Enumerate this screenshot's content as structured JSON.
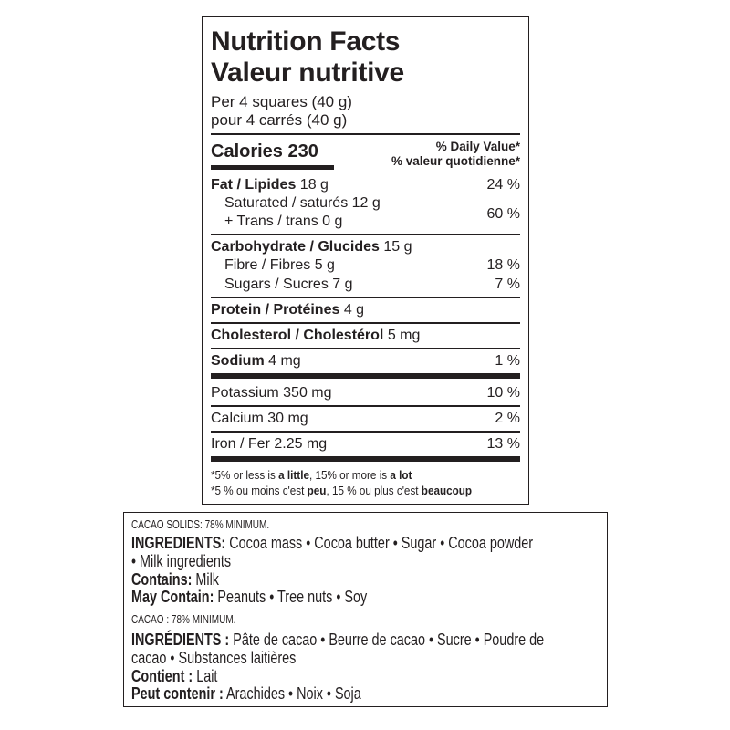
{
  "nutrition": {
    "title_en": "Nutrition Facts",
    "title_fr": "Valeur nutritive",
    "serving_en": "Per 4 squares (40 g)",
    "serving_fr": "pour 4 carrés (40 g)",
    "calories_label": "Calories",
    "calories_value": "230",
    "dv_header_en": "% Daily Value*",
    "dv_header_fr": "% valeur quotidienne*",
    "fat": {
      "label": "Fat / Lipides",
      "amount": "18 g",
      "dv": "24 %"
    },
    "saturated": {
      "label": "Saturated / saturés 12 g"
    },
    "trans": {
      "label": "+ Trans / trans 0 g",
      "dv": "60 %"
    },
    "carb": {
      "label": "Carbohydrate / Glucides",
      "amount": "15 g"
    },
    "fibre": {
      "label": "Fibre / Fibres 5 g",
      "dv": "18 %"
    },
    "sugars": {
      "label": "Sugars / Sucres 7 g",
      "dv": "7 %"
    },
    "protein": {
      "label": "Protein / Protéines",
      "amount": "4 g"
    },
    "cholesterol": {
      "label": "Cholesterol / Cholestérol",
      "amount": "5 mg"
    },
    "sodium": {
      "label": "Sodium",
      "amount": "4 mg",
      "dv": "1 %"
    },
    "potassium": {
      "label": "Potassium 350 mg",
      "dv": "10 %"
    },
    "calcium": {
      "label": "Calcium 30 mg",
      "dv": "2 %"
    },
    "iron": {
      "label": "Iron / Fer 2.25 mg",
      "dv": "13 %"
    },
    "footnote_en": {
      "a": "*5% or less is ",
      "b": "a little",
      "c": ", 15% or more is ",
      "d": "a lot"
    },
    "footnote_fr": {
      "a": "*5 % ou moins c'est ",
      "b": "peu",
      "c": ", 15 % ou plus c'est ",
      "d": "beaucoup"
    }
  },
  "ingredients": {
    "en": {
      "cacao": "CACAO SOLIDS: 78% MINIMUM.",
      "ing_label": "INGREDIENTS:",
      "ing_line1": " Cocoa mass • Cocoa butter • Sugar • Cocoa powder",
      "ing_line2": "• Milk ingredients",
      "contains_label": "Contains:",
      "contains": " Milk",
      "may_label": "May Contain:",
      "may": " Peanuts • Tree nuts • Soy"
    },
    "fr": {
      "cacao": "CACAO : 78% MINIMUM.",
      "ing_label": "INGRÉDIENTS :",
      "ing_line1": " Pâte de cacao • Beurre de cacao • Sucre • Poudre de",
      "ing_line2": "cacao • Substances laitières",
      "contains_label": "Contient :",
      "contains": " Lait",
      "may_label": "Peut contenir :",
      "may": " Arachides • Noix • Soja"
    }
  }
}
